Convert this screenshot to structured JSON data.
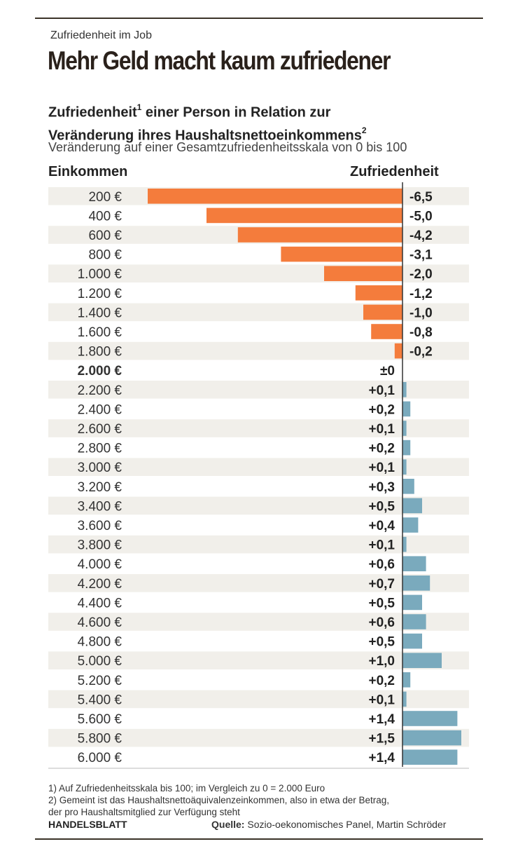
{
  "kicker": "Zufriedenheit im Job",
  "headline": "Mehr Geld macht kaum zufriedener",
  "subtitle": {
    "line1": "Zufriedenheit",
    "sup1": "1",
    "line1_rest": " einer Person in Relation zur",
    "line2": "Veränderung ihres Haushaltsnettoeinkommens",
    "sup2": "2"
  },
  "description": "Veränderung auf einer Gesamtzufriedenheitsskala von 0 bis 100",
  "footnotes": {
    "note1": "1) Auf Zufriedenheitsskala bis 100; im Vergleich zu 0 = 2.000 Euro",
    "note2a": "2) Gemeint ist das Haushaltsnettoäquivalenzeinkommen, also in etwa der Betrag,",
    "note2b": "der pro Haushaltsmitglied zur Verfügung steht"
  },
  "brand": "HANDELSBLATT",
  "source": {
    "label": "Quelle:",
    "text": " Sozio-oekonomisches Panel, Martin Schröder"
  },
  "colors": {
    "negative": "#f47c3c",
    "positive": "#7aaabd",
    "stripe": "#f1efea",
    "axis": "#333333"
  },
  "chart_data": {
    "type": "bar",
    "orientation": "horizontal",
    "xlabel": "Einkommen",
    "ylabel": "Zufriedenheit",
    "reference_category": "2.000 €",
    "categories": [
      "200 €",
      "400 €",
      "600 €",
      "800 €",
      "1.000 €",
      "1.200 €",
      "1.400 €",
      "1.600 €",
      "1.800 €",
      "2.000 €",
      "2.200 €",
      "2.400 €",
      "2.600 €",
      "2.800 €",
      "3.000 €",
      "3.200 €",
      "3.400 €",
      "3.600 €",
      "3.800 €",
      "4.000 €",
      "4.200 €",
      "4.400 €",
      "4.600 €",
      "4.800 €",
      "5.000 €",
      "5.200 €",
      "5.400 €",
      "5.600 €",
      "5.800 €",
      "6.000 €"
    ],
    "values": [
      -6.5,
      -5.0,
      -4.2,
      -3.1,
      -2.0,
      -1.2,
      -1.0,
      -0.8,
      -0.2,
      0,
      0.1,
      0.2,
      0.1,
      0.2,
      0.1,
      0.3,
      0.5,
      0.4,
      0.1,
      0.6,
      0.7,
      0.5,
      0.6,
      0.5,
      1.0,
      0.2,
      0.1,
      1.4,
      1.5,
      1.4
    ],
    "value_labels": [
      "-6,5",
      "-5,0",
      "-4,2",
      "-3,1",
      "-2,0",
      "-1,2",
      "-1,0",
      "-0,8",
      "-0,2",
      "±0",
      "+0,1",
      "+0,2",
      "+0,1",
      "+0,2",
      "+0,1",
      "+0,3",
      "+0,5",
      "+0,4",
      "+0,1",
      "+0,6",
      "+0,7",
      "+0,5",
      "+0,6",
      "+0,5",
      "+1,0",
      "+0,2",
      "+0,1",
      "+1,4",
      "+1,5",
      "+1,4"
    ]
  }
}
